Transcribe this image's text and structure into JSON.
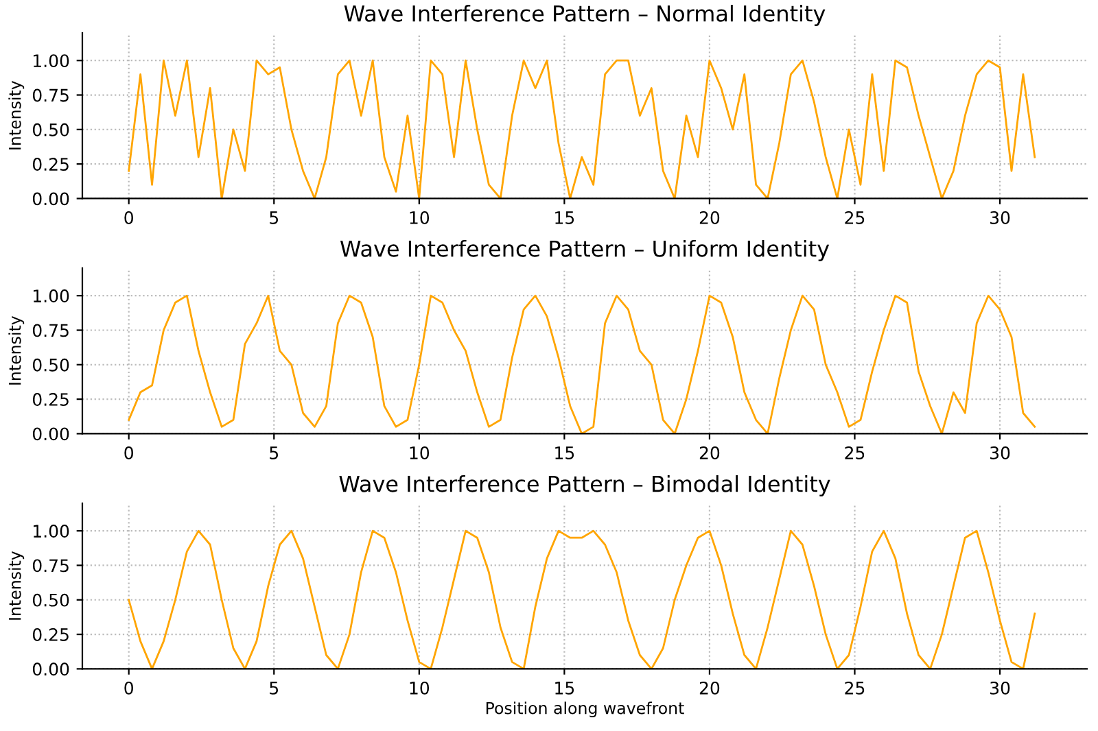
{
  "chart_data": [
    {
      "type": "line",
      "title": "Wave Interference Pattern – Normal Identity",
      "ylabel": "Intensity",
      "xlim": [
        -1.6,
        33
      ],
      "ylim": [
        0,
        1.2
      ],
      "xticks": [
        0,
        5,
        10,
        15,
        20,
        25,
        30
      ],
      "yticks": [
        {
          "value": 0,
          "label": "0.00"
        },
        {
          "value": 0.25,
          "label": "0.25"
        },
        {
          "value": 0.5,
          "label": "0.50"
        },
        {
          "value": 0.75,
          "label": "0.75"
        },
        {
          "value": 1,
          "label": "1.00"
        }
      ],
      "grid": true,
      "legend": false,
      "line_style": "solid",
      "marker": "none",
      "x": [
        0,
        0.4,
        0.8,
        1.2,
        1.6,
        2.0,
        2.4,
        2.8,
        3.2,
        3.6,
        4.0,
        4.4,
        4.8,
        5.2,
        5.6,
        6.0,
        6.4,
        6.8,
        7.2,
        7.6,
        8.0,
        8.4,
        8.8,
        9.2,
        9.6,
        10.0,
        10.4,
        10.8,
        11.2,
        11.6,
        12.0,
        12.4,
        12.8,
        13.2,
        13.6,
        14.0,
        14.4,
        14.8,
        15.2,
        15.6,
        16.0,
        16.4,
        16.8,
        17.2,
        17.6,
        18.0,
        18.4,
        18.8,
        19.2,
        19.6,
        20.0,
        20.4,
        20.8,
        21.2,
        21.6,
        22.0,
        22.4,
        22.8,
        23.2,
        23.6,
        24.0,
        24.4,
        24.8,
        25.2,
        25.6,
        26.0,
        26.4,
        26.8,
        27.2,
        27.6,
        28.0,
        28.4,
        28.8,
        29.2,
        29.6,
        30.0,
        30.4,
        30.8,
        31.2
      ],
      "series": [
        {
          "color": "#ffa500",
          "values": [
            0.2,
            0.9,
            0.1,
            1.0,
            0.6,
            1.0,
            0.3,
            0.8,
            0.0,
            0.5,
            0.2,
            1.0,
            0.9,
            0.95,
            0.5,
            0.2,
            0.0,
            0.3,
            0.9,
            1.0,
            0.6,
            1.0,
            0.3,
            0.05,
            0.6,
            0.0,
            1.0,
            0.9,
            0.3,
            1.0,
            0.5,
            0.1,
            0.0,
            0.6,
            1.0,
            0.8,
            1.0,
            0.4,
            0.0,
            0.3,
            0.1,
            0.9,
            1.0,
            1.0,
            0.6,
            0.8,
            0.2,
            0.0,
            0.6,
            0.3,
            1.0,
            0.8,
            0.5,
            0.9,
            0.1,
            0.0,
            0.4,
            0.9,
            1.0,
            0.7,
            0.3,
            0.0,
            0.5,
            0.1,
            0.9,
            0.2,
            1.0,
            0.95,
            0.6,
            0.3,
            0.0,
            0.2,
            0.6,
            0.9,
            1.0,
            0.95,
            0.2,
            0.9,
            0.3
          ]
        }
      ]
    },
    {
      "type": "line",
      "title": "Wave Interference Pattern – Uniform Identity",
      "ylabel": "Intensity",
      "xlim": [
        -1.6,
        33
      ],
      "ylim": [
        0,
        1.2
      ],
      "xticks": [
        0,
        5,
        10,
        15,
        20,
        25,
        30
      ],
      "yticks": [
        {
          "value": 0,
          "label": "0.00"
        },
        {
          "value": 0.25,
          "label": "0.25"
        },
        {
          "value": 0.5,
          "label": "0.50"
        },
        {
          "value": 0.75,
          "label": "0.75"
        },
        {
          "value": 1,
          "label": "1.00"
        }
      ],
      "grid": true,
      "legend": false,
      "line_style": "solid",
      "marker": "none",
      "x": [
        0,
        0.4,
        0.8,
        1.2,
        1.6,
        2.0,
        2.4,
        2.8,
        3.2,
        3.6,
        4.0,
        4.4,
        4.8,
        5.2,
        5.6,
        6.0,
        6.4,
        6.8,
        7.2,
        7.6,
        8.0,
        8.4,
        8.8,
        9.2,
        9.6,
        10.0,
        10.4,
        10.8,
        11.2,
        11.6,
        12.0,
        12.4,
        12.8,
        13.2,
        13.6,
        14.0,
        14.4,
        14.8,
        15.2,
        15.6,
        16.0,
        16.4,
        16.8,
        17.2,
        17.6,
        18.0,
        18.4,
        18.8,
        19.2,
        19.6,
        20.0,
        20.4,
        20.8,
        21.2,
        21.6,
        22.0,
        22.4,
        22.8,
        23.2,
        23.6,
        24.0,
        24.4,
        24.8,
        25.2,
        25.6,
        26.0,
        26.4,
        26.8,
        27.2,
        27.6,
        28.0,
        28.4,
        28.8,
        29.2,
        29.6,
        30.0,
        30.4,
        30.8,
        31.2
      ],
      "series": [
        {
          "color": "#ffa500",
          "values": [
            0.1,
            0.3,
            0.35,
            0.75,
            0.95,
            1.0,
            0.6,
            0.3,
            0.05,
            0.1,
            0.65,
            0.8,
            1.0,
            0.6,
            0.5,
            0.15,
            0.05,
            0.2,
            0.8,
            1.0,
            0.95,
            0.7,
            0.2,
            0.05,
            0.1,
            0.5,
            1.0,
            0.95,
            0.75,
            0.6,
            0.3,
            0.05,
            0.1,
            0.55,
            0.9,
            1.0,
            0.85,
            0.55,
            0.2,
            0.0,
            0.05,
            0.8,
            1.0,
            0.9,
            0.6,
            0.5,
            0.1,
            0.0,
            0.25,
            0.6,
            1.0,
            0.95,
            0.7,
            0.3,
            0.1,
            0.0,
            0.4,
            0.75,
            1.0,
            0.9,
            0.5,
            0.3,
            0.05,
            0.1,
            0.45,
            0.75,
            1.0,
            0.95,
            0.45,
            0.2,
            0.0,
            0.3,
            0.15,
            0.8,
            1.0,
            0.9,
            0.7,
            0.15,
            0.05
          ]
        }
      ]
    },
    {
      "type": "line",
      "title": "Wave Interference Pattern – Bimodal Identity",
      "xlabel": "Position along wavefront",
      "ylabel": "Intensity",
      "xlim": [
        -1.6,
        33
      ],
      "ylim": [
        0,
        1.2
      ],
      "xticks": [
        0,
        5,
        10,
        15,
        20,
        25,
        30
      ],
      "yticks": [
        {
          "value": 0,
          "label": "0.00"
        },
        {
          "value": 0.25,
          "label": "0.25"
        },
        {
          "value": 0.5,
          "label": "0.50"
        },
        {
          "value": 0.75,
          "label": "0.75"
        },
        {
          "value": 1,
          "label": "1.00"
        }
      ],
      "grid": true,
      "legend": false,
      "line_style": "solid",
      "marker": "none",
      "x": [
        0,
        0.4,
        0.8,
        1.2,
        1.6,
        2.0,
        2.4,
        2.8,
        3.2,
        3.6,
        4.0,
        4.4,
        4.8,
        5.2,
        5.6,
        6.0,
        6.4,
        6.8,
        7.2,
        7.6,
        8.0,
        8.4,
        8.8,
        9.2,
        9.6,
        10.0,
        10.4,
        10.8,
        11.2,
        11.6,
        12.0,
        12.4,
        12.8,
        13.2,
        13.6,
        14.0,
        14.4,
        14.8,
        15.2,
        15.6,
        16.0,
        16.4,
        16.8,
        17.2,
        17.6,
        18.0,
        18.4,
        18.8,
        19.2,
        19.6,
        20.0,
        20.4,
        20.8,
        21.2,
        21.6,
        22.0,
        22.4,
        22.8,
        23.2,
        23.6,
        24.0,
        24.4,
        24.8,
        25.2,
        25.6,
        26.0,
        26.4,
        26.8,
        27.2,
        27.6,
        28.0,
        28.4,
        28.8,
        29.2,
        29.6,
        30.0,
        30.4,
        30.8,
        31.2
      ],
      "series": [
        {
          "color": "#ffa500",
          "values": [
            0.5,
            0.2,
            0.0,
            0.2,
            0.5,
            0.85,
            1.0,
            0.9,
            0.5,
            0.15,
            0.0,
            0.2,
            0.6,
            0.9,
            1.0,
            0.8,
            0.45,
            0.1,
            0.0,
            0.25,
            0.7,
            1.0,
            0.95,
            0.7,
            0.35,
            0.05,
            0.0,
            0.3,
            0.65,
            1.0,
            0.95,
            0.7,
            0.3,
            0.05,
            0.0,
            0.45,
            0.8,
            1.0,
            0.95,
            0.95,
            1.0,
            0.9,
            0.7,
            0.35,
            0.1,
            0.0,
            0.15,
            0.5,
            0.75,
            0.95,
            1.0,
            0.75,
            0.4,
            0.1,
            0.0,
            0.3,
            0.65,
            1.0,
            0.9,
            0.6,
            0.25,
            0.0,
            0.1,
            0.45,
            0.85,
            1.0,
            0.8,
            0.4,
            0.1,
            0.0,
            0.25,
            0.6,
            0.95,
            1.0,
            0.7,
            0.35,
            0.05,
            0.0,
            0.4
          ]
        }
      ]
    }
  ]
}
